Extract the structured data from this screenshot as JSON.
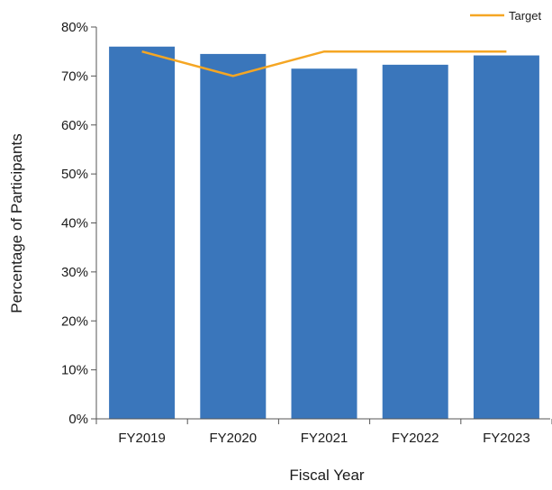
{
  "chart_data": {
    "type": "bar",
    "title": "",
    "xlabel": "Fiscal Year",
    "ylabel": "Percentage of Participants",
    "categories": [
      "FY2019",
      "FY2020",
      "FY2021",
      "FY2022",
      "FY2023"
    ],
    "series": [
      {
        "name": "",
        "type": "bar",
        "color": "#3a76bb",
        "values": [
          76,
          74.5,
          71.5,
          72.3,
          74.2
        ]
      },
      {
        "name": "Target",
        "type": "line",
        "color": "#f5a623",
        "values": [
          75,
          70,
          75,
          75,
          75
        ]
      }
    ],
    "ylim": [
      0,
      80
    ],
    "yticks": [
      0,
      10,
      20,
      30,
      40,
      50,
      60,
      70,
      80
    ],
    "ytick_labels": [
      "0%",
      "10%",
      "20%",
      "30%",
      "40%",
      "50%",
      "60%",
      "70%",
      "80%"
    ],
    "grid": false,
    "legend_position": "top-right"
  }
}
